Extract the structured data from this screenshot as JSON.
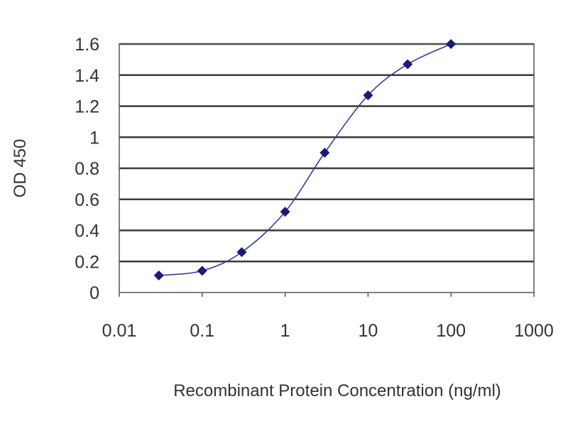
{
  "chart_data": {
    "type": "line",
    "title": "",
    "xlabel": "Recombinant Protein Concentration (ng/ml)",
    "ylabel": "OD 450",
    "x_scale": "log",
    "xlim": [
      0.01,
      1000
    ],
    "ylim": [
      0,
      1.6
    ],
    "x_ticks": [
      "0.01",
      "0.1",
      "1",
      "10",
      "100",
      "1000"
    ],
    "y_ticks": [
      "0",
      "0.2",
      "0.4",
      "0.6",
      "0.8",
      "1",
      "1.2",
      "1.4",
      "1.6"
    ],
    "grid": "horizontal",
    "legend": "none",
    "series": [
      {
        "x": [
          0.03,
          0.1,
          0.3,
          1,
          3,
          10,
          30,
          100
        ],
        "y": [
          0.11,
          0.14,
          0.26,
          0.52,
          0.9,
          1.27,
          1.47,
          1.6
        ],
        "color": "#1a1a7a",
        "marker": "diamond",
        "smooth": true
      }
    ]
  }
}
